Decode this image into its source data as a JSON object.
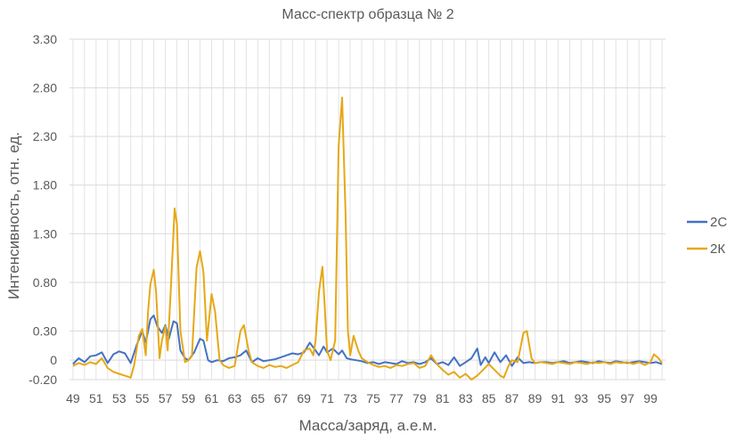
{
  "chart_data": {
    "type": "line",
    "title": "Масс-спектр образца № 2",
    "xlabel": "Масса/заряд,  а.е.м.",
    "ylabel": "Интенсивность,  отн.  ед.",
    "xlim": [
      48.7,
      100.3
    ],
    "ylim": [
      -0.2,
      3.3
    ],
    "x_ticks": [
      49,
      51,
      53,
      55,
      57,
      59,
      61,
      63,
      65,
      67,
      69,
      71,
      73,
      75,
      77,
      79,
      81,
      83,
      85,
      87,
      89,
      91,
      93,
      95,
      97,
      99
    ],
    "y_ticks": [
      {
        "value": 3.3,
        "label": "3.30"
      },
      {
        "value": 2.8,
        "label": "2.80"
      },
      {
        "value": 2.3,
        "label": "2.30"
      },
      {
        "value": 1.8,
        "label": "1.80"
      },
      {
        "value": 1.3,
        "label": "1.30"
      },
      {
        "value": 0.8,
        "label": "0.80"
      },
      {
        "value": 0.3,
        "label": "0.30"
      },
      {
        "value": 0.0,
        "label": "0"
      },
      {
        "value": -0.2,
        "label": "-0.20"
      }
    ],
    "grid": {
      "vertical": true,
      "horizontal": true
    },
    "legend": {
      "position": "right"
    },
    "series": [
      {
        "name": "2С",
        "color": "#4472C4",
        "points": [
          [
            49.0,
            -0.04
          ],
          [
            49.5,
            0.02
          ],
          [
            50.0,
            -0.02
          ],
          [
            50.5,
            0.04
          ],
          [
            51.0,
            0.05
          ],
          [
            51.5,
            0.08
          ],
          [
            52.0,
            -0.03
          ],
          [
            52.5,
            0.06
          ],
          [
            53.0,
            0.09
          ],
          [
            53.5,
            0.07
          ],
          [
            54.0,
            -0.03
          ],
          [
            54.5,
            0.15
          ],
          [
            55.0,
            0.3
          ],
          [
            55.3,
            0.18
          ],
          [
            55.7,
            0.42
          ],
          [
            56.0,
            0.46
          ],
          [
            56.3,
            0.35
          ],
          [
            56.7,
            0.28
          ],
          [
            57.0,
            0.36
          ],
          [
            57.3,
            0.22
          ],
          [
            57.7,
            0.4
          ],
          [
            58.0,
            0.38
          ],
          [
            58.3,
            0.1
          ],
          [
            58.7,
            0.02
          ],
          [
            59.0,
            0.0
          ],
          [
            59.5,
            0.08
          ],
          [
            60.0,
            0.22
          ],
          [
            60.3,
            0.2
          ],
          [
            60.7,
            0.0
          ],
          [
            61.0,
            -0.02
          ],
          [
            61.5,
            0.0
          ],
          [
            62.0,
            -0.01
          ],
          [
            62.5,
            0.02
          ],
          [
            63.0,
            0.03
          ],
          [
            63.5,
            0.05
          ],
          [
            64.0,
            0.1
          ],
          [
            64.5,
            -0.02
          ],
          [
            65.0,
            0.02
          ],
          [
            65.5,
            -0.01
          ],
          [
            66.0,
            0.0
          ],
          [
            66.5,
            0.01
          ],
          [
            67.0,
            0.03
          ],
          [
            67.5,
            0.05
          ],
          [
            68.0,
            0.07
          ],
          [
            68.5,
            0.06
          ],
          [
            69.0,
            0.08
          ],
          [
            69.5,
            0.18
          ],
          [
            70.0,
            0.1
          ],
          [
            70.3,
            0.05
          ],
          [
            70.7,
            0.14
          ],
          [
            71.0,
            0.08
          ],
          [
            71.5,
            0.12
          ],
          [
            72.0,
            0.06
          ],
          [
            72.3,
            0.1
          ],
          [
            72.7,
            0.02
          ],
          [
            73.0,
            0.01
          ],
          [
            73.5,
            0.0
          ],
          [
            74.0,
            -0.01
          ],
          [
            74.5,
            -0.03
          ],
          [
            75.0,
            -0.02
          ],
          [
            75.5,
            -0.04
          ],
          [
            76.0,
            -0.02
          ],
          [
            76.5,
            -0.03
          ],
          [
            77.0,
            -0.04
          ],
          [
            77.5,
            -0.01
          ],
          [
            78.0,
            -0.03
          ],
          [
            78.5,
            -0.02
          ],
          [
            79.0,
            -0.04
          ],
          [
            79.5,
            -0.02
          ],
          [
            80.0,
            0.02
          ],
          [
            80.5,
            -0.04
          ],
          [
            81.0,
            -0.02
          ],
          [
            81.5,
            -0.05
          ],
          [
            82.0,
            0.03
          ],
          [
            82.5,
            -0.06
          ],
          [
            83.0,
            -0.02
          ],
          [
            83.5,
            0.02
          ],
          [
            84.0,
            0.12
          ],
          [
            84.3,
            -0.05
          ],
          [
            84.7,
            0.03
          ],
          [
            85.0,
            -0.03
          ],
          [
            85.5,
            0.08
          ],
          [
            86.0,
            -0.02
          ],
          [
            86.5,
            0.05
          ],
          [
            87.0,
            -0.06
          ],
          [
            87.5,
            0.03
          ],
          [
            88.0,
            -0.03
          ],
          [
            88.5,
            -0.02
          ],
          [
            89.0,
            -0.03
          ],
          [
            89.5,
            -0.02
          ],
          [
            90.0,
            -0.02
          ],
          [
            90.5,
            -0.03
          ],
          [
            91.0,
            -0.02
          ],
          [
            91.5,
            -0.01
          ],
          [
            92.0,
            -0.03
          ],
          [
            92.5,
            -0.02
          ],
          [
            93.0,
            -0.01
          ],
          [
            93.5,
            -0.02
          ],
          [
            94.0,
            -0.03
          ],
          [
            94.5,
            -0.01
          ],
          [
            95.0,
            -0.02
          ],
          [
            95.5,
            -0.03
          ],
          [
            96.0,
            -0.01
          ],
          [
            96.5,
            -0.02
          ],
          [
            97.0,
            -0.03
          ],
          [
            97.5,
            -0.02
          ],
          [
            98.0,
            -0.01
          ],
          [
            98.5,
            -0.02
          ],
          [
            99.0,
            -0.03
          ],
          [
            99.5,
            -0.02
          ],
          [
            100.0,
            -0.04
          ]
        ]
      },
      {
        "name": "2К",
        "color": "#E6A817",
        "points": [
          [
            49.0,
            -0.06
          ],
          [
            49.5,
            -0.03
          ],
          [
            50.0,
            -0.05
          ],
          [
            50.5,
            -0.02
          ],
          [
            51.0,
            -0.04
          ],
          [
            51.5,
            0.02
          ],
          [
            52.0,
            -0.08
          ],
          [
            52.5,
            -0.12
          ],
          [
            53.0,
            -0.14
          ],
          [
            53.5,
            -0.16
          ],
          [
            54.0,
            -0.18
          ],
          [
            54.3,
            -0.05
          ],
          [
            54.7,
            0.25
          ],
          [
            55.0,
            0.32
          ],
          [
            55.3,
            0.05
          ],
          [
            55.5,
            0.5
          ],
          [
            55.7,
            0.78
          ],
          [
            56.0,
            0.93
          ],
          [
            56.2,
            0.7
          ],
          [
            56.5,
            0.02
          ],
          [
            56.7,
            0.2
          ],
          [
            57.0,
            0.35
          ],
          [
            57.2,
            0.1
          ],
          [
            57.5,
            0.8
          ],
          [
            57.8,
            1.56
          ],
          [
            58.0,
            1.4
          ],
          [
            58.3,
            0.3
          ],
          [
            58.7,
            -0.02
          ],
          [
            59.0,
            0.0
          ],
          [
            59.3,
            0.04
          ],
          [
            59.7,
            0.95
          ],
          [
            60.0,
            1.12
          ],
          [
            60.3,
            0.9
          ],
          [
            60.6,
            0.2
          ],
          [
            61.0,
            0.68
          ],
          [
            61.3,
            0.5
          ],
          [
            61.7,
            0.0
          ],
          [
            62.0,
            -0.05
          ],
          [
            62.5,
            -0.08
          ],
          [
            63.0,
            -0.06
          ],
          [
            63.5,
            0.3
          ],
          [
            63.8,
            0.36
          ],
          [
            64.2,
            0.1
          ],
          [
            64.5,
            -0.02
          ],
          [
            65.0,
            -0.06
          ],
          [
            65.5,
            -0.08
          ],
          [
            66.0,
            -0.05
          ],
          [
            66.5,
            -0.07
          ],
          [
            67.0,
            -0.06
          ],
          [
            67.5,
            -0.08
          ],
          [
            68.0,
            -0.05
          ],
          [
            68.5,
            -0.02
          ],
          [
            69.0,
            0.1
          ],
          [
            69.5,
            0.12
          ],
          [
            69.8,
            0.05
          ],
          [
            70.0,
            0.2
          ],
          [
            70.3,
            0.7
          ],
          [
            70.6,
            0.96
          ],
          [
            70.8,
            0.55
          ],
          [
            71.0,
            0.1
          ],
          [
            71.3,
            0.0
          ],
          [
            71.7,
            0.2
          ],
          [
            72.0,
            2.2
          ],
          [
            72.3,
            2.7
          ],
          [
            72.6,
            1.5
          ],
          [
            72.8,
            0.3
          ],
          [
            73.0,
            0.05
          ],
          [
            73.3,
            0.25
          ],
          [
            73.7,
            0.1
          ],
          [
            74.0,
            0.02
          ],
          [
            74.5,
            -0.02
          ],
          [
            75.0,
            -0.05
          ],
          [
            75.5,
            -0.07
          ],
          [
            76.0,
            -0.06
          ],
          [
            76.5,
            -0.08
          ],
          [
            77.0,
            -0.05
          ],
          [
            77.5,
            -0.06
          ],
          [
            78.0,
            -0.04
          ],
          [
            78.5,
            -0.03
          ],
          [
            79.0,
            -0.08
          ],
          [
            79.5,
            -0.06
          ],
          [
            80.0,
            0.05
          ],
          [
            80.5,
            -0.04
          ],
          [
            81.0,
            -0.1
          ],
          [
            81.5,
            -0.15
          ],
          [
            82.0,
            -0.12
          ],
          [
            82.5,
            -0.18
          ],
          [
            83.0,
            -0.14
          ],
          [
            83.5,
            -0.2
          ],
          [
            84.0,
            -0.16
          ],
          [
            84.5,
            -0.1
          ],
          [
            85.0,
            -0.04
          ],
          [
            85.5,
            -0.1
          ],
          [
            86.0,
            -0.16
          ],
          [
            86.3,
            -0.18
          ],
          [
            86.7,
            -0.06
          ],
          [
            87.0,
            0.0
          ],
          [
            87.5,
            -0.02
          ],
          [
            88.0,
            0.28
          ],
          [
            88.3,
            0.3
          ],
          [
            88.7,
            0.02
          ],
          [
            89.0,
            -0.03
          ],
          [
            89.5,
            -0.02
          ],
          [
            90.0,
            -0.03
          ],
          [
            90.5,
            -0.04
          ],
          [
            91.0,
            -0.02
          ],
          [
            91.5,
            -0.03
          ],
          [
            92.0,
            -0.04
          ],
          [
            92.5,
            -0.02
          ],
          [
            93.0,
            -0.03
          ],
          [
            93.5,
            -0.04
          ],
          [
            94.0,
            -0.02
          ],
          [
            94.5,
            -0.03
          ],
          [
            95.0,
            -0.02
          ],
          [
            95.5,
            -0.04
          ],
          [
            96.0,
            -0.02
          ],
          [
            96.5,
            -0.03
          ],
          [
            97.0,
            -0.02
          ],
          [
            97.5,
            -0.04
          ],
          [
            98.0,
            -0.02
          ],
          [
            98.5,
            -0.05
          ],
          [
            99.0,
            -0.02
          ],
          [
            99.3,
            0.06
          ],
          [
            99.7,
            0.02
          ],
          [
            100.0,
            -0.03
          ]
        ]
      }
    ]
  }
}
